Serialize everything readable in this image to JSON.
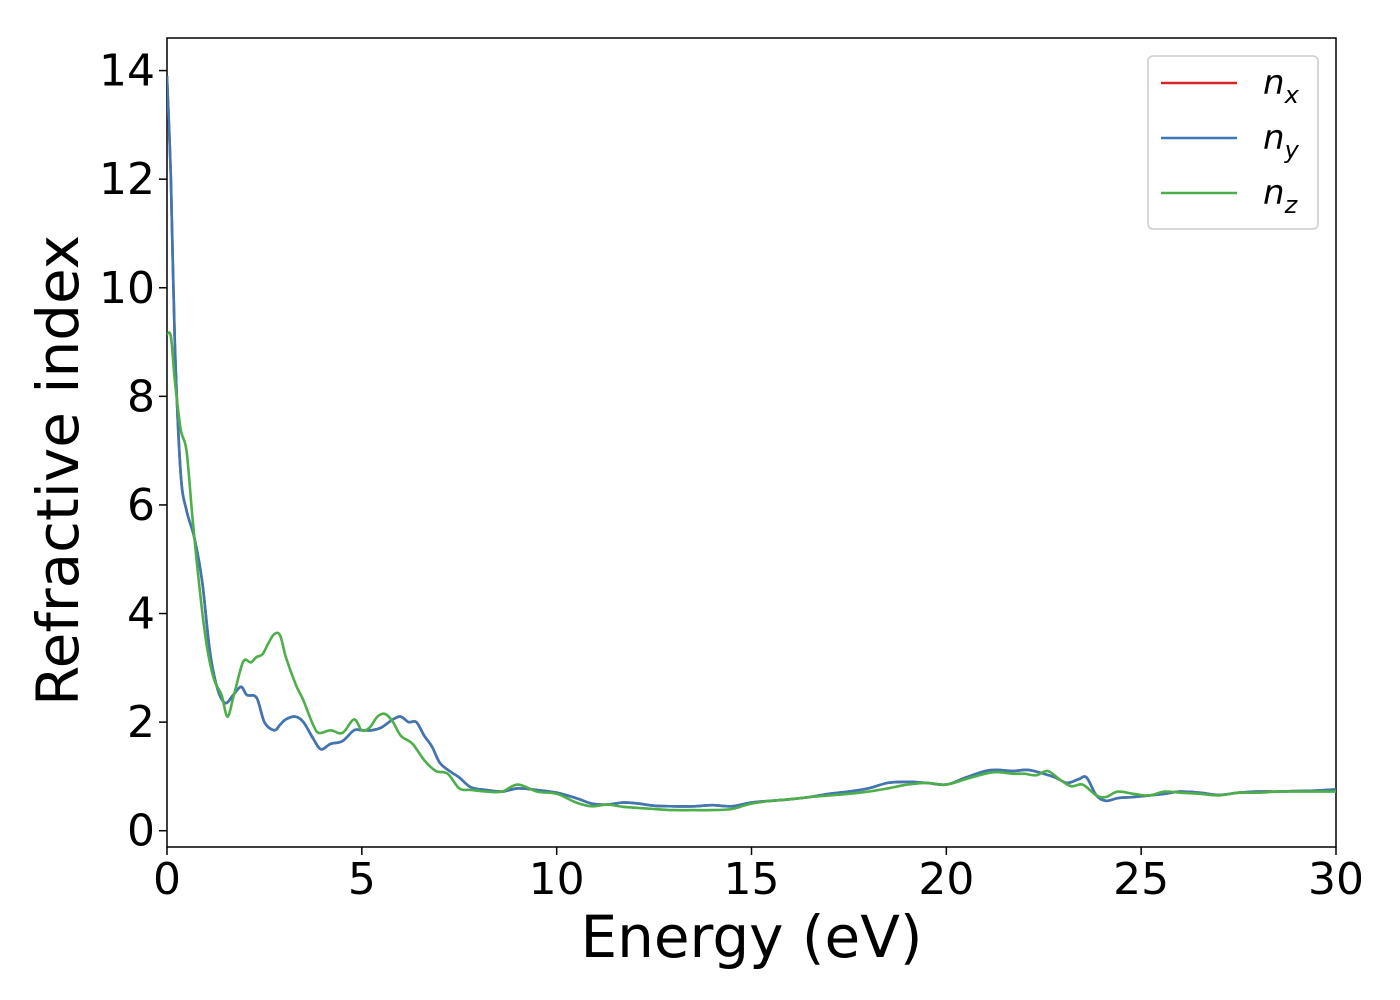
{
  "chart_data": {
    "type": "line",
    "xlabel": "Energy (eV)",
    "ylabel": "Refractive index",
    "xlim": [
      0,
      30
    ],
    "ylim": [
      -0.3,
      14.6
    ],
    "xticks": [
      0,
      5,
      10,
      15,
      20,
      25,
      30
    ],
    "yticks": [
      0,
      2,
      4,
      6,
      8,
      10,
      12,
      14
    ],
    "grid": false,
    "legend_position": "top-right",
    "series": [
      {
        "name": "n",
        "subscript": "x",
        "color": "#d62728",
        "x": [
          0,
          0.1,
          0.2,
          0.35,
          0.5,
          0.7,
          0.9,
          1.1,
          1.3,
          1.5,
          1.7,
          1.9,
          2.05,
          2.3,
          2.5,
          2.75,
          2.9,
          3.05,
          3.3,
          3.5,
          3.75,
          3.95,
          4.2,
          4.5,
          4.8,
          5.0,
          5.25,
          5.5,
          5.8,
          6.0,
          6.2,
          6.4,
          6.6,
          6.8,
          7.0,
          7.25,
          7.5,
          7.8,
          8.2,
          8.6,
          9.0,
          9.5,
          10.0,
          10.5,
          10.9,
          11.3,
          11.7,
          12.1,
          12.5,
          13.0,
          13.5,
          14.0,
          14.5,
          15.0,
          15.5,
          16.0,
          16.5,
          17.0,
          17.5,
          18.0,
          18.5,
          19.0,
          19.5,
          20.0,
          20.5,
          21.0,
          21.3,
          21.7,
          22.1,
          22.5,
          22.8,
          23.1,
          23.4,
          23.6,
          23.85,
          24.1,
          24.4,
          24.8,
          25.2,
          25.6,
          26.0,
          26.5,
          27.0,
          27.5,
          28.0,
          28.5,
          29.0,
          29.5,
          30.0
        ],
        "values": [
          13.9,
          12.0,
          9.0,
          6.6,
          5.9,
          5.4,
          4.6,
          3.3,
          2.6,
          2.35,
          2.5,
          2.65,
          2.5,
          2.45,
          2.0,
          1.85,
          1.95,
          2.05,
          2.1,
          2.0,
          1.7,
          1.5,
          1.6,
          1.65,
          1.85,
          1.85,
          1.85,
          1.9,
          2.05,
          2.1,
          2.0,
          2.0,
          1.75,
          1.55,
          1.25,
          1.1,
          0.98,
          0.8,
          0.75,
          0.72,
          0.78,
          0.75,
          0.7,
          0.6,
          0.5,
          0.48,
          0.52,
          0.5,
          0.46,
          0.45,
          0.45,
          0.47,
          0.45,
          0.52,
          0.55,
          0.58,
          0.62,
          0.68,
          0.72,
          0.78,
          0.88,
          0.9,
          0.88,
          0.85,
          0.98,
          1.1,
          1.12,
          1.1,
          1.12,
          1.05,
          0.98,
          0.88,
          0.95,
          0.98,
          0.65,
          0.55,
          0.6,
          0.62,
          0.65,
          0.68,
          0.72,
          0.7,
          0.66,
          0.7,
          0.72,
          0.72,
          0.73,
          0.74,
          0.76
        ]
      },
      {
        "name": "n",
        "subscript": "y",
        "color": "#3c78b4",
        "x": [
          0,
          0.1,
          0.2,
          0.35,
          0.5,
          0.7,
          0.9,
          1.1,
          1.3,
          1.5,
          1.7,
          1.9,
          2.05,
          2.3,
          2.5,
          2.75,
          2.9,
          3.05,
          3.3,
          3.5,
          3.75,
          3.95,
          4.2,
          4.5,
          4.8,
          5.0,
          5.25,
          5.5,
          5.8,
          6.0,
          6.2,
          6.4,
          6.6,
          6.8,
          7.0,
          7.25,
          7.5,
          7.8,
          8.2,
          8.6,
          9.0,
          9.5,
          10.0,
          10.5,
          10.9,
          11.3,
          11.7,
          12.1,
          12.5,
          13.0,
          13.5,
          14.0,
          14.5,
          15.0,
          15.5,
          16.0,
          16.5,
          17.0,
          17.5,
          18.0,
          18.5,
          19.0,
          19.5,
          20.0,
          20.5,
          21.0,
          21.3,
          21.7,
          22.1,
          22.5,
          22.8,
          23.1,
          23.4,
          23.6,
          23.85,
          24.1,
          24.4,
          24.8,
          25.2,
          25.6,
          26.0,
          26.5,
          27.0,
          27.5,
          28.0,
          28.5,
          29.0,
          29.5,
          30.0
        ],
        "values": [
          13.9,
          12.0,
          9.0,
          6.6,
          5.9,
          5.4,
          4.6,
          3.3,
          2.6,
          2.35,
          2.5,
          2.65,
          2.5,
          2.45,
          2.0,
          1.85,
          1.95,
          2.05,
          2.1,
          2.0,
          1.7,
          1.5,
          1.6,
          1.65,
          1.85,
          1.85,
          1.85,
          1.9,
          2.05,
          2.1,
          2.0,
          2.0,
          1.75,
          1.55,
          1.25,
          1.1,
          0.98,
          0.8,
          0.75,
          0.72,
          0.78,
          0.75,
          0.7,
          0.6,
          0.5,
          0.48,
          0.52,
          0.5,
          0.46,
          0.45,
          0.45,
          0.47,
          0.45,
          0.52,
          0.55,
          0.58,
          0.62,
          0.68,
          0.72,
          0.78,
          0.88,
          0.9,
          0.88,
          0.85,
          0.98,
          1.1,
          1.12,
          1.1,
          1.12,
          1.05,
          0.98,
          0.88,
          0.95,
          0.98,
          0.65,
          0.55,
          0.6,
          0.62,
          0.65,
          0.68,
          0.72,
          0.7,
          0.66,
          0.7,
          0.72,
          0.72,
          0.73,
          0.74,
          0.76
        ]
      },
      {
        "name": "n",
        "subscript": "z",
        "color": "#4daf4a",
        "x": [
          0,
          0.1,
          0.2,
          0.35,
          0.5,
          0.65,
          0.8,
          1.0,
          1.2,
          1.4,
          1.55,
          1.7,
          1.9,
          2.0,
          2.15,
          2.3,
          2.45,
          2.6,
          2.75,
          2.9,
          3.05,
          3.3,
          3.5,
          3.75,
          3.9,
          4.2,
          4.5,
          4.8,
          5.0,
          5.2,
          5.4,
          5.6,
          5.8,
          6.0,
          6.3,
          6.6,
          6.9,
          7.2,
          7.5,
          7.8,
          8.2,
          8.6,
          9.0,
          9.5,
          10.0,
          10.5,
          10.9,
          11.3,
          11.7,
          12.1,
          12.5,
          13.0,
          13.5,
          14.0,
          14.5,
          15.0,
          15.5,
          16.0,
          16.5,
          17.0,
          17.5,
          18.0,
          18.5,
          19.0,
          19.5,
          20.0,
          20.5,
          21.0,
          21.3,
          21.7,
          22.0,
          22.3,
          22.6,
          22.9,
          23.2,
          23.5,
          23.85,
          24.1,
          24.4,
          24.8,
          25.2,
          25.6,
          26.0,
          26.5,
          27.0,
          27.5,
          28.0,
          28.5,
          29.0,
          29.5,
          30.0
        ],
        "values": [
          9.15,
          9.1,
          8.3,
          7.4,
          7.0,
          5.8,
          4.7,
          3.5,
          2.8,
          2.5,
          2.1,
          2.45,
          3.0,
          3.15,
          3.1,
          3.2,
          3.25,
          3.45,
          3.62,
          3.6,
          3.2,
          2.7,
          2.4,
          1.95,
          1.8,
          1.85,
          1.8,
          2.05,
          1.85,
          1.9,
          2.1,
          2.15,
          2.0,
          1.75,
          1.6,
          1.3,
          1.1,
          1.05,
          0.78,
          0.75,
          0.72,
          0.72,
          0.85,
          0.72,
          0.68,
          0.52,
          0.45,
          0.48,
          0.44,
          0.42,
          0.4,
          0.38,
          0.38,
          0.38,
          0.4,
          0.5,
          0.55,
          0.58,
          0.62,
          0.65,
          0.68,
          0.72,
          0.78,
          0.85,
          0.88,
          0.85,
          0.95,
          1.05,
          1.08,
          1.05,
          1.05,
          1.02,
          1.1,
          0.95,
          0.82,
          0.85,
          0.65,
          0.62,
          0.72,
          0.68,
          0.65,
          0.72,
          0.7,
          0.68,
          0.65,
          0.7,
          0.7,
          0.72,
          0.72,
          0.72,
          0.72
        ]
      }
    ]
  }
}
